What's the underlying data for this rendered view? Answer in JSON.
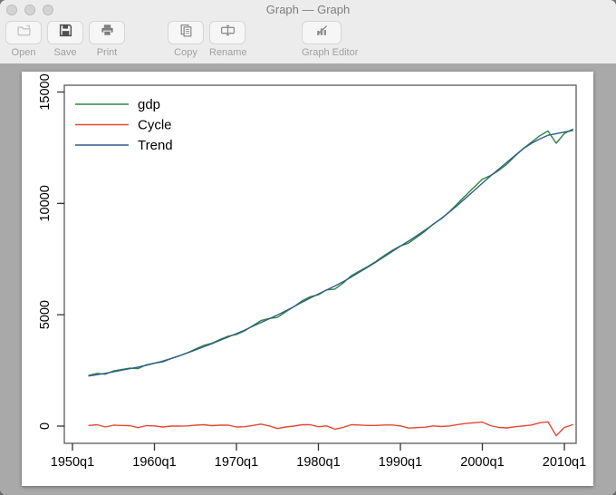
{
  "window": {
    "title": "Graph — Graph"
  },
  "titlebar": {
    "traffic_lights": [
      {
        "name": "close"
      },
      {
        "name": "minimize"
      },
      {
        "name": "zoom"
      }
    ]
  },
  "toolbar": {
    "buttons": [
      {
        "label": "Open",
        "icon": "open-folder-icon"
      },
      {
        "label": "Save",
        "icon": "save-floppy-icon"
      },
      {
        "label": "Print",
        "icon": "printer-icon"
      },
      {
        "label": "Copy",
        "icon": "copy-icon"
      },
      {
        "label": "Rename",
        "icon": "rename-icon"
      },
      {
        "label": "Graph Editor",
        "icon": "graph-editor-icon"
      }
    ]
  },
  "chart_data": {
    "type": "line",
    "title": "",
    "xlabel": "",
    "ylabel": "",
    "grid": false,
    "legend_position": "top-left",
    "x_ticks": [
      {
        "year": 1950,
        "label": "1950q1"
      },
      {
        "year": 1960,
        "label": "1960q1"
      },
      {
        "year": 1970,
        "label": "1970q1"
      },
      {
        "year": 1980,
        "label": "1980q1"
      },
      {
        "year": 1990,
        "label": "1990q1"
      },
      {
        "year": 2000,
        "label": "2000q1"
      },
      {
        "year": 2010,
        "label": "2010q1"
      }
    ],
    "y_ticks": [
      {
        "value": 0,
        "label": "0"
      },
      {
        "value": 5000,
        "label": "5000"
      },
      {
        "value": 10000,
        "label": "10000"
      },
      {
        "value": 15000,
        "label": "15000"
      }
    ],
    "xlim": [
      1948.8,
      2012.5
    ],
    "ylim": [
      -800,
      15300
    ],
    "x_years": [
      1952,
      1953,
      1954,
      1955,
      1956,
      1957,
      1958,
      1959,
      1960,
      1961,
      1962,
      1963,
      1964,
      1965,
      1966,
      1967,
      1968,
      1969,
      1970,
      1971,
      1972,
      1973,
      1974,
      1975,
      1976,
      1977,
      1978,
      1979,
      1980,
      1981,
      1982,
      1983,
      1984,
      1985,
      1986,
      1987,
      1988,
      1989,
      1990,
      1991,
      1992,
      1993,
      1994,
      1995,
      1996,
      1997,
      1998,
      1999,
      2000,
      2001,
      2002,
      2003,
      2004,
      2005,
      2006,
      2007,
      2008,
      2009,
      2010,
      2011
    ],
    "series": [
      {
        "name": "gdp",
        "color": "#2e8540",
        "values": [
          2280,
          2370,
          2330,
          2480,
          2540,
          2600,
          2580,
          2750,
          2830,
          2880,
          3030,
          3150,
          3290,
          3460,
          3620,
          3720,
          3890,
          4040,
          4110,
          4280,
          4510,
          4740,
          4830,
          4880,
          5130,
          5360,
          5620,
          5810,
          5900,
          6120,
          6150,
          6420,
          6750,
          6960,
          7160,
          7390,
          7650,
          7890,
          8090,
          8220,
          8480,
          8750,
          9070,
          9310,
          9630,
          10000,
          10370,
          10730,
          11090,
          11250,
          11480,
          11770,
          12130,
          12470,
          12750,
          13040,
          13250,
          12700,
          13140,
          13330
        ]
      },
      {
        "name": "Cycle",
        "color": "#e04a31",
        "values": [
          30,
          60,
          -40,
          40,
          30,
          20,
          -70,
          20,
          10,
          -40,
          0,
          0,
          10,
          40,
          60,
          20,
          40,
          40,
          -40,
          -30,
          30,
          90,
          10,
          -110,
          -40,
          0,
          60,
          60,
          -30,
          10,
          -140,
          -60,
          60,
          50,
          30,
          30,
          50,
          50,
          10,
          -90,
          -70,
          -50,
          10,
          -20,
          10,
          70,
          120,
          150,
          180,
          20,
          -60,
          -80,
          -30,
          10,
          50,
          150,
          190,
          -430,
          -60,
          60
        ]
      },
      {
        "name": "Trend",
        "color": "#2f5e88",
        "values": [
          2250,
          2310,
          2370,
          2440,
          2510,
          2580,
          2650,
          2730,
          2820,
          2920,
          3030,
          3150,
          3280,
          3420,
          3560,
          3700,
          3850,
          4000,
          4150,
          4310,
          4480,
          4650,
          4820,
          4990,
          5170,
          5360,
          5560,
          5750,
          5930,
          6110,
          6290,
          6480,
          6690,
          6910,
          7130,
          7360,
          7600,
          7840,
          8080,
          8310,
          8550,
          8800,
          9060,
          9330,
          9620,
          9930,
          10250,
          10580,
          10910,
          11230,
          11540,
          11850,
          12160,
          12460,
          12700,
          12890,
          13060,
          13130,
          13200,
          13270
        ]
      }
    ]
  }
}
